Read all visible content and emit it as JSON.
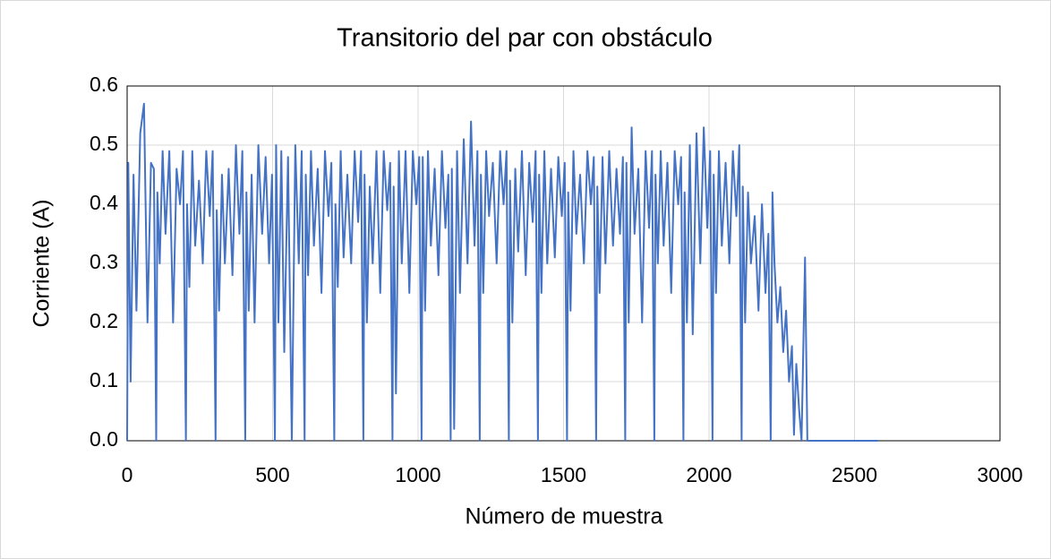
{
  "chart_data": {
    "type": "line",
    "title": "Transitorio del par con obstáculo",
    "x_label": "Número de muestra",
    "y_label": "Corriente (A)",
    "xlim": [
      0,
      3000
    ],
    "xticks": [
      0,
      500,
      1000,
      1500,
      2000,
      2500,
      3000
    ],
    "ylim": [
      0,
      0.6
    ],
    "yticks": [
      {
        "value": 0,
        "label": "0.0"
      },
      0.1,
      0.2,
      0.3,
      0.4,
      0.5,
      0.6
    ],
    "grid": true,
    "series": [
      {
        "name": "Corriente",
        "color": "#4472c4",
        "x": [
          0,
          4,
          12,
          22,
          32,
          45,
          58,
          70,
          82,
          92,
          100,
          104,
          112,
          122,
          132,
          145,
          158,
          170,
          182,
          192,
          202,
          206,
          214,
          224,
          234,
          247,
          260,
          272,
          284,
          294,
          304,
          308,
          316,
          326,
          336,
          349,
          362,
          374,
          386,
          396,
          406,
          410,
          418,
          428,
          438,
          451,
          464,
          476,
          488,
          498,
          508,
          512,
          520,
          530,
          540,
          553,
          566,
          578,
          590,
          600,
          610,
          614,
          622,
          632,
          642,
          655,
          668,
          680,
          692,
          702,
          712,
          716,
          724,
          734,
          744,
          757,
          770,
          782,
          794,
          804,
          812,
          816,
          824,
          834,
          844,
          857,
          870,
          882,
          894,
          904,
          912,
          916,
          924,
          934,
          944,
          957,
          970,
          982,
          994,
          1004,
          1012,
          1016,
          1024,
          1034,
          1044,
          1057,
          1070,
          1082,
          1094,
          1104,
          1112,
          1116,
          1124,
          1134,
          1144,
          1157,
          1170,
          1182,
          1194,
          1204,
          1212,
          1216,
          1224,
          1234,
          1244,
          1257,
          1270,
          1282,
          1294,
          1304,
          1312,
          1316,
          1324,
          1334,
          1344,
          1357,
          1370,
          1382,
          1394,
          1404,
          1412,
          1416,
          1424,
          1434,
          1444,
          1457,
          1470,
          1482,
          1494,
          1504,
          1512,
          1516,
          1524,
          1534,
          1544,
          1557,
          1570,
          1582,
          1594,
          1604,
          1612,
          1616,
          1624,
          1634,
          1644,
          1657,
          1670,
          1682,
          1694,
          1704,
          1712,
          1716,
          1724,
          1734,
          1744,
          1757,
          1770,
          1782,
          1794,
          1804,
          1812,
          1816,
          1824,
          1834,
          1844,
          1857,
          1870,
          1882,
          1894,
          1904,
          1912,
          1916,
          1924,
          1934,
          1944,
          1957,
          1970,
          1982,
          1994,
          2004,
          2012,
          2016,
          2024,
          2034,
          2044,
          2057,
          2070,
          2082,
          2094,
          2104,
          2112,
          2116,
          2124,
          2134,
          2144,
          2157,
          2170,
          2182,
          2194,
          2204,
          2212,
          2218,
          2225,
          2235,
          2245,
          2255,
          2265,
          2275,
          2285,
          2292,
          2300,
          2310,
          2318,
          2330,
          2338,
          2580
        ],
        "values": [
          0,
          0.47,
          0.1,
          0.45,
          0.22,
          0.52,
          0.57,
          0.2,
          0.47,
          0.46,
          0,
          0.42,
          0.3,
          0.49,
          0.35,
          0.49,
          0.2,
          0.46,
          0.4,
          0.49,
          0,
          0.4,
          0.26,
          0.49,
          0.33,
          0.44,
          0.3,
          0.49,
          0.38,
          0.49,
          0,
          0.39,
          0.22,
          0.45,
          0.3,
          0.46,
          0.28,
          0.5,
          0.35,
          0.49,
          0,
          0.42,
          0.22,
          0.45,
          0.2,
          0.5,
          0.35,
          0.48,
          0.3,
          0.45,
          0,
          0.5,
          0.2,
          0.49,
          0.15,
          0.48,
          0,
          0.5,
          0.3,
          0.49,
          0,
          0.45,
          0.28,
          0.49,
          0.33,
          0.46,
          0.25,
          0.49,
          0.38,
          0.47,
          0,
          0.4,
          0.26,
          0.49,
          0.31,
          0.45,
          0.3,
          0.49,
          0.37,
          0.49,
          0,
          0.45,
          0.2,
          0.43,
          0.3,
          0.49,
          0.25,
          0.49,
          0.39,
          0.47,
          0,
          0.43,
          0.08,
          0.49,
          0.3,
          0.49,
          0.25,
          0.49,
          0.4,
          0.48,
          0,
          0.48,
          0.22,
          0.49,
          0.33,
          0.46,
          0.28,
          0.49,
          0.36,
          0.45,
          0,
          0.46,
          0.02,
          0.49,
          0.25,
          0.51,
          0.3,
          0.54,
          0.33,
          0.49,
          0,
          0.45,
          0.25,
          0.49,
          0.38,
          0.47,
          0.3,
          0.49,
          0.4,
          0.49,
          0,
          0.44,
          0.2,
          0.46,
          0.32,
          0.49,
          0.28,
          0.47,
          0.37,
          0.49,
          0,
          0.45,
          0.25,
          0.49,
          0.3,
          0.46,
          0.31,
          0.48,
          0.38,
          0.47,
          0,
          0.42,
          0.22,
          0.49,
          0.35,
          0.45,
          0.3,
          0.49,
          0.4,
          0.48,
          0,
          0.43,
          0.25,
          0.48,
          0.3,
          0.49,
          0.33,
          0.46,
          0.35,
          0.48,
          0,
          0.47,
          0.2,
          0.53,
          0.35,
          0.46,
          0.2,
          0.49,
          0.36,
          0.49,
          0,
          0.45,
          0.3,
          0.49,
          0.33,
          0.47,
          0.25,
          0.49,
          0.4,
          0.48,
          0,
          0.42,
          0.2,
          0.5,
          0.18,
          0.52,
          0.3,
          0.53,
          0.36,
          0.49,
          0,
          0.45,
          0.25,
          0.49,
          0.33,
          0.47,
          0.3,
          0.49,
          0.38,
          0.5,
          0,
          0.43,
          0.2,
          0.42,
          0.3,
          0.38,
          0.22,
          0.4,
          0.25,
          0.35,
          0,
          0.42,
          0.3,
          0.2,
          0.26,
          0.15,
          0.22,
          0.1,
          0.16,
          0.01,
          0.13,
          0.05,
          0,
          0.31,
          0,
          0
        ]
      }
    ]
  }
}
